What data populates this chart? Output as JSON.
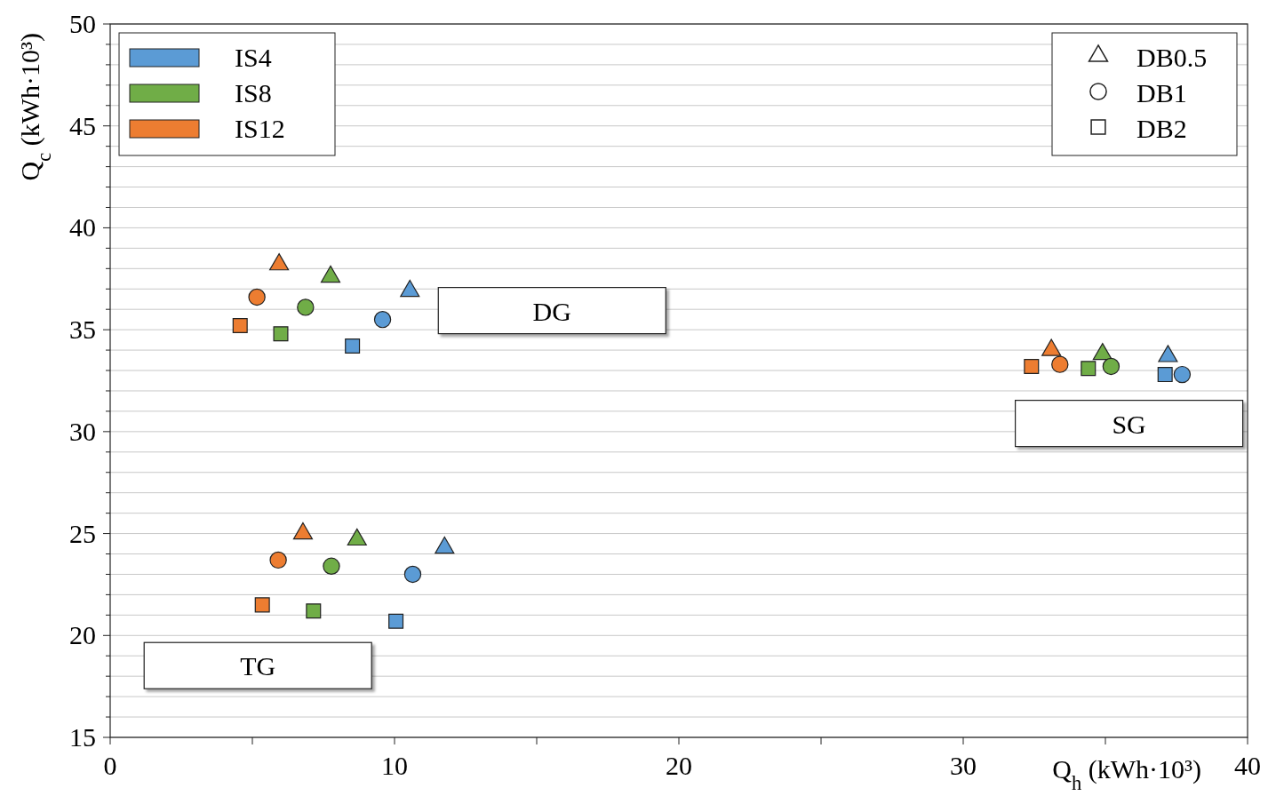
{
  "chart_data": {
    "type": "scatter",
    "xlabel": "Q$_{h}$ (kWh·10³)",
    "ylabel": "Q$_{c}$ (kWh·10³)",
    "xlim": [
      0,
      40
    ],
    "ylim": [
      15,
      50
    ],
    "xticks": [
      0,
      {
        "value": 5,
        "label": null
      },
      10,
      {
        "value": 15,
        "label": null
      },
      20,
      {
        "value": 25,
        "label": null
      },
      30,
      {
        "value": 35,
        "label": null
      },
      40
    ],
    "yticks": [
      15,
      {
        "value": 16,
        "label": null
      },
      {
        "value": 17,
        "label": null
      },
      {
        "value": 18,
        "label": null
      },
      {
        "value": 19,
        "label": null
      },
      20,
      {
        "value": 21,
        "label": null
      },
      {
        "value": 22,
        "label": null
      },
      {
        "value": 23,
        "label": null
      },
      {
        "value": 24,
        "label": null
      },
      25,
      {
        "value": 26,
        "label": null
      },
      {
        "value": 27,
        "label": null
      },
      {
        "value": 28,
        "label": null
      },
      {
        "value": 29,
        "label": null
      },
      30,
      {
        "value": 31,
        "label": null
      },
      {
        "value": 32,
        "label": null
      },
      {
        "value": 33,
        "label": null
      },
      {
        "value": 34,
        "label": null
      },
      35,
      {
        "value": 36,
        "label": null
      },
      {
        "value": 37,
        "label": null
      },
      {
        "value": 38,
        "label": null
      },
      {
        "value": 39,
        "label": null
      },
      40,
      {
        "value": 41,
        "label": null
      },
      {
        "value": 42,
        "label": null
      },
      {
        "value": 43,
        "label": null
      },
      {
        "value": 44,
        "label": null
      },
      45,
      {
        "value": 46,
        "label": null
      },
      {
        "value": 47,
        "label": null
      },
      {
        "value": 48,
        "label": null
      },
      {
        "value": 49,
        "label": null
      },
      50
    ],
    "grid": "y",
    "legend": "top left",
    "annotations": [
      "DG",
      "SG",
      "TG"
    ],
    "series": [
      {
        "color": "#ed7d31",
        "marker": "triangle",
        "x": [
          5.94,
          33.1,
          6.78
        ],
        "values": [
          38.2,
          34.0,
          25.0
        ]
      },
      {
        "color": "#70ad47",
        "marker": "triangle",
        "x": [
          7.75,
          34.9,
          8.68
        ],
        "values": [
          37.6,
          33.8,
          24.7
        ]
      },
      {
        "color": "#5b9bd5",
        "marker": "triangle",
        "x": [
          10.54,
          37.2,
          11.76
        ],
        "values": [
          36.9,
          33.7,
          24.3
        ]
      },
      {
        "color": "#ed7d31",
        "marker": "circle",
        "x": [
          5.16,
          33.4,
          5.91
        ],
        "values": [
          36.6,
          33.3,
          23.7
        ]
      },
      {
        "color": "#70ad47",
        "marker": "circle",
        "x": [
          6.87,
          35.2,
          7.78
        ],
        "values": [
          36.1,
          33.2,
          23.4
        ]
      },
      {
        "color": "#5b9bd5",
        "marker": "circle",
        "x": [
          9.58,
          37.7,
          10.64
        ],
        "values": [
          35.5,
          32.8,
          23.0
        ]
      },
      {
        "color": "#ed7d31",
        "marker": "square",
        "x": [
          4.57,
          32.4,
          5.35
        ],
        "values": [
          35.2,
          33.2,
          21.5
        ]
      },
      {
        "color": "#70ad47",
        "marker": "square",
        "x": [
          6.0,
          34.4,
          7.15
        ],
        "values": [
          34.8,
          33.1,
          21.2
        ]
      },
      {
        "color": "#5b9bd5",
        "marker": "square",
        "x": [
          8.52,
          37.1,
          10.05
        ],
        "values": [
          34.2,
          32.8,
          20.7
        ]
      },
      {
        "name": "IS4",
        "color": "#5b9bd5",
        "marker": "none"
      },
      {
        "name": "IS8",
        "color": "#70ad47",
        "marker": "none"
      },
      {
        "name": "IS12",
        "color": "#ed7d31",
        "marker": "none"
      },
      {
        "name": "DB0.5",
        "color": "#ffffff",
        "marker": "triangle"
      },
      {
        "name": "DB1",
        "color": "#ffffff",
        "marker": "circle"
      },
      {
        "name": "DB2",
        "color": "#ffffff",
        "marker": "square"
      }
    ]
  }
}
